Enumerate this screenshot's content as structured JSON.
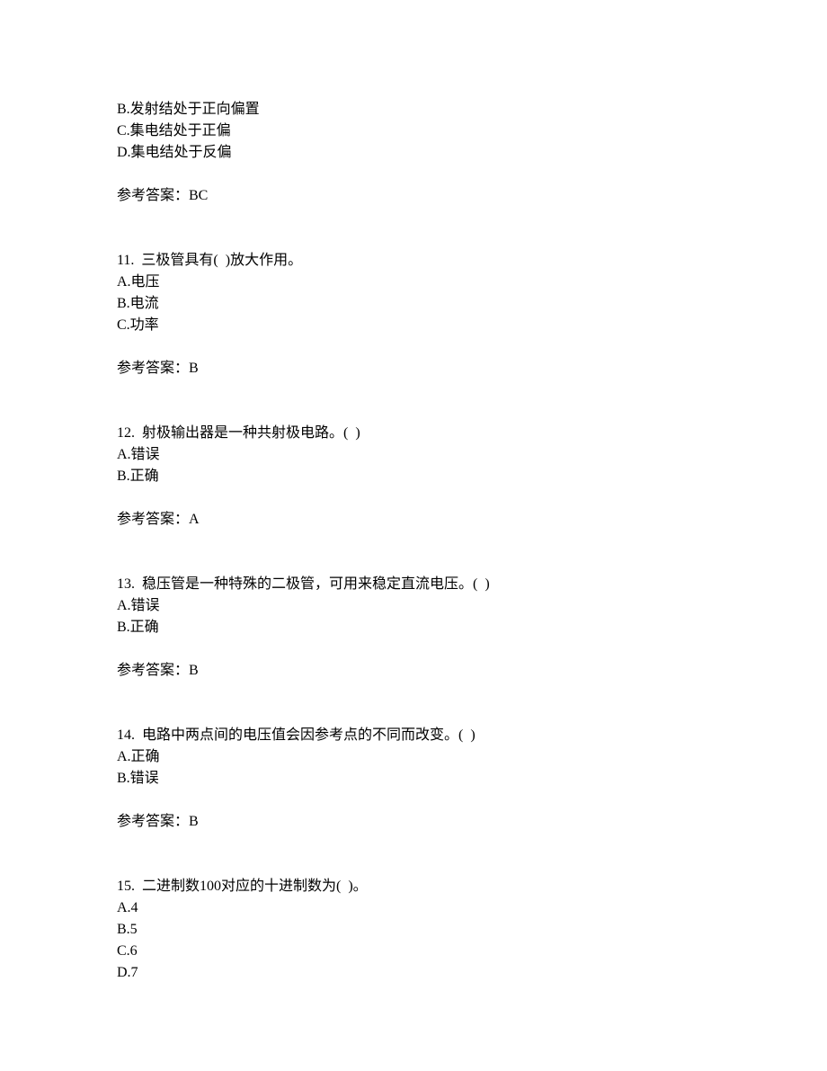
{
  "q10_partial": {
    "option_b": "B.发射结处于正向偏置",
    "option_c": "C.集电结处于正偏",
    "option_d": "D.集电结处于反偏",
    "answer_label": "参考答案：BC"
  },
  "q11": {
    "stem": "11.  三极管具有(  )放大作用。",
    "option_a": "A.电压",
    "option_b": "B.电流",
    "option_c": "C.功率",
    "answer_label": "参考答案：B"
  },
  "q12": {
    "stem": "12.  射极输出器是一种共射极电路。(  )",
    "option_a": "A.错误",
    "option_b": "B.正确",
    "answer_label": "参考答案：A"
  },
  "q13": {
    "stem": "13.  稳压管是一种特殊的二极管，可用来稳定直流电压。(  )",
    "option_a": "A.错误",
    "option_b": "B.正确",
    "answer_label": "参考答案：B"
  },
  "q14": {
    "stem": "14.  电路中两点间的电压值会因参考点的不同而改变。(  )",
    "option_a": "A.正确",
    "option_b": "B.错误",
    "answer_label": "参考答案：B"
  },
  "q15": {
    "stem": "15.  二进制数100对应的十进制数为(  )。",
    "option_a": "A.4",
    "option_b": "B.5",
    "option_c": "C.6",
    "option_d": "D.7"
  }
}
